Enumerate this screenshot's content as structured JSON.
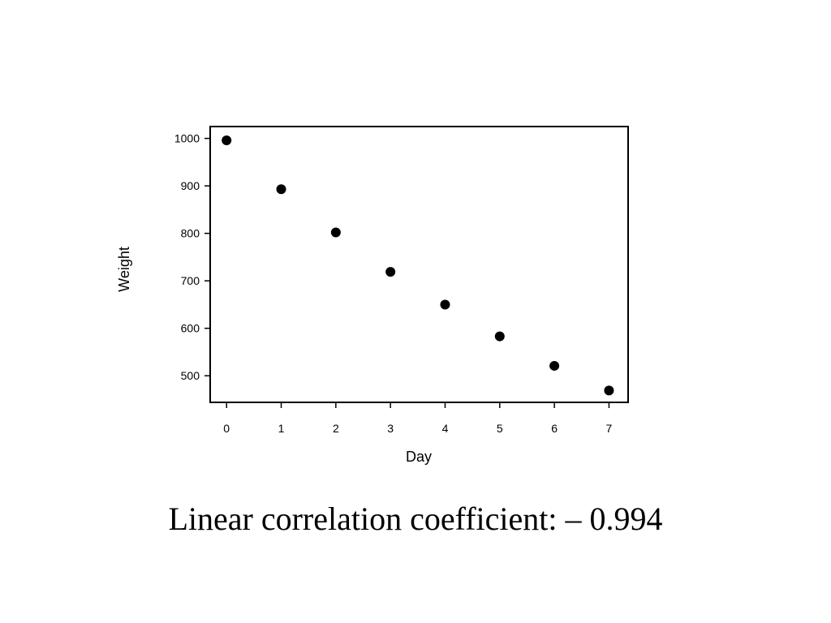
{
  "chart_data": {
    "type": "scatter",
    "title": "",
    "xlabel": "Day",
    "ylabel": "Weight",
    "x": [
      0,
      1,
      2,
      3,
      4,
      5,
      6,
      7
    ],
    "y": [
      996,
      893,
      802,
      719,
      650,
      583,
      521,
      469
    ],
    "xlim": [
      -0.3,
      7.35
    ],
    "ylim": [
      444,
      1025
    ],
    "xticks": [
      0,
      1,
      2,
      3,
      4,
      5,
      6,
      7
    ],
    "yticks": [
      500,
      600,
      700,
      800,
      900,
      1000
    ],
    "grid": false,
    "legend": "none",
    "marker_color": "#000000"
  },
  "caption": "Linear correlation coefficient: – 0.994"
}
